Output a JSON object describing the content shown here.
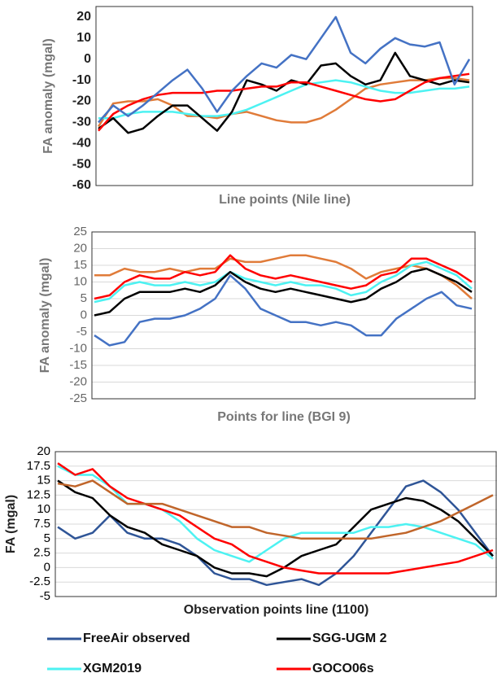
{
  "chart_data": [
    {
      "type": "line",
      "ylabel": "FA anomaly (mgal)",
      "xlabel": "Line points (Nile line)",
      "ylim": [
        -60,
        25
      ],
      "yticks": [
        -60,
        -50,
        -40,
        -30,
        -20,
        -10,
        0,
        10,
        20
      ],
      "grid": false,
      "series": [
        {
          "color": "#e07b39",
          "values": [
            -32,
            -21,
            -20,
            -20,
            -19,
            -22,
            -27,
            -27,
            -28,
            -26,
            -25,
            -27,
            -29,
            -30,
            -30,
            -28,
            -24,
            -19,
            -14,
            -12,
            -11,
            -10,
            -10,
            -9,
            -9,
            -10
          ]
        },
        {
          "name": "XGM2019",
          "color": "#4df2f2",
          "values": [
            -28,
            -28,
            -26,
            -25,
            -25,
            -25,
            -26,
            -27,
            -27,
            -26,
            -24,
            -21,
            -18,
            -15,
            -12,
            -11,
            -10,
            -11,
            -13,
            -15,
            -16,
            -16,
            -15,
            -14,
            -14,
            -13
          ]
        },
        {
          "name": "SGG-UGM 2",
          "color": "#000000",
          "values": [
            -33,
            -28,
            -35,
            -33,
            -27,
            -22,
            -22,
            -28,
            -34,
            -25,
            -10,
            -12,
            -15,
            -10,
            -12,
            -3,
            -2,
            -8,
            -12,
            -10,
            3,
            -8,
            -10,
            -12,
            -10,
            -11
          ]
        },
        {
          "name": "GOCO06s",
          "color": "#ff0000",
          "values": [
            -34,
            -26,
            -22,
            -19,
            -17,
            -16,
            -16,
            -16,
            -15,
            -15,
            -14,
            -13,
            -13,
            -11,
            -11,
            -13,
            -15,
            -17,
            -19,
            -20,
            -19,
            -15,
            -11,
            -9,
            -8,
            -7
          ]
        },
        {
          "name": "FreeAir observed",
          "color": "#4472c4",
          "values": [
            -30,
            -22,
            -27,
            -22,
            -16,
            -10,
            -5,
            -14,
            -25,
            -15,
            -8,
            -2,
            -4,
            2,
            0,
            10,
            20,
            3,
            -2,
            5,
            10,
            7,
            6,
            8,
            -12,
            0
          ]
        }
      ]
    },
    {
      "type": "line",
      "ylabel": "FA anomaly (mgal)",
      "xlabel": "Points for line (BGI 9)",
      "ylim": [
        -25,
        25
      ],
      "yticks": [
        -25,
        -20,
        -15,
        -10,
        -5,
        0,
        5,
        10,
        15,
        20,
        25
      ],
      "grid": true,
      "series": [
        {
          "color": "#e07b39",
          "values": [
            12,
            12,
            14,
            13,
            13,
            14,
            13,
            14,
            14,
            17,
            16,
            16,
            17,
            18,
            18,
            17,
            16,
            14,
            11,
            13,
            14,
            15,
            14,
            12,
            9,
            5
          ]
        },
        {
          "name": "XGM2019",
          "color": "#4df2f2",
          "values": [
            4,
            5,
            9,
            10,
            9,
            9,
            10,
            9,
            10,
            13,
            11,
            10,
            9,
            10,
            9,
            9,
            8,
            6,
            7,
            10,
            12,
            15,
            16,
            14,
            12,
            8
          ]
        },
        {
          "name": "SGG-UGM 2",
          "color": "#000000",
          "values": [
            0,
            1,
            5,
            7,
            7,
            7,
            8,
            7,
            9,
            13,
            10,
            8,
            7,
            8,
            7,
            6,
            5,
            4,
            5,
            8,
            10,
            13,
            14,
            12,
            10,
            7
          ]
        },
        {
          "name": "GOCO06s",
          "color": "#ff0000",
          "values": [
            5,
            6,
            10,
            12,
            11,
            11,
            13,
            12,
            13,
            18,
            14,
            12,
            11,
            12,
            11,
            10,
            9,
            8,
            9,
            12,
            13,
            17,
            17,
            15,
            13,
            10
          ]
        },
        {
          "name": "FreeAir observed",
          "color": "#4472c4",
          "values": [
            -6,
            -9,
            -8,
            -2,
            -1,
            -1,
            0,
            2,
            5,
            12,
            8,
            2,
            0,
            -2,
            -2,
            -3,
            -2,
            -3,
            -6,
            -6,
            -1,
            2,
            5,
            7,
            3,
            2
          ]
        }
      ]
    },
    {
      "type": "line",
      "ylabel": "FA (mgal)",
      "xlabel": "Observation points line (1100)",
      "ylim": [
        -5,
        20
      ],
      "yticks": [
        -5,
        -2.5,
        0,
        2.5,
        5,
        7.5,
        10,
        12.5,
        15,
        17.5,
        20
      ],
      "grid": true,
      "legend": "bottom",
      "series": [
        {
          "name": "FreeAir observed",
          "color": "#2f5597",
          "values": [
            7,
            5,
            6,
            9,
            6,
            5,
            5,
            4,
            2,
            -1,
            -2,
            -2,
            -3,
            -2.5,
            -2,
            -3,
            -1,
            2,
            6,
            10,
            14,
            15,
            13,
            10,
            6,
            2
          ]
        },
        {
          "name": "SGG-UGM 2",
          "color": "#000000",
          "values": [
            15,
            13,
            12,
            9,
            7,
            6,
            4,
            3,
            2,
            0,
            -1,
            -1,
            -1.5,
            0,
            2,
            3,
            4,
            7,
            10,
            11,
            12,
            11.5,
            10,
            8,
            5,
            2
          ]
        },
        {
          "name": "XGM2019",
          "color": "#4df2f2",
          "values": [
            17.5,
            16,
            16,
            14,
            11,
            11,
            10,
            8,
            5,
            3,
            2,
            1,
            3,
            5,
            6,
            6,
            6,
            6,
            7,
            7,
            7.5,
            7,
            6,
            5,
            4,
            1.5
          ]
        },
        {
          "name": "GOCO06s",
          "color": "#ff0000",
          "values": [
            18,
            16,
            17,
            14,
            12,
            11,
            10,
            9,
            7,
            5,
            4,
            2,
            1,
            0,
            -0.5,
            -1,
            -1,
            -1,
            -1,
            -1,
            -0.5,
            0,
            0.5,
            1,
            2,
            3
          ]
        },
        {
          "color": "#c0652a",
          "values": [
            14.5,
            14,
            15,
            13,
            11,
            11,
            11,
            10,
            9,
            8,
            7,
            7,
            6,
            5.5,
            5,
            5,
            5,
            5,
            5,
            5.5,
            6,
            7,
            8,
            9.5,
            11,
            12.5
          ]
        }
      ]
    }
  ]
}
